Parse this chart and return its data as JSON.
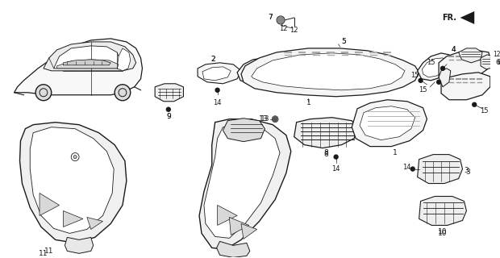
{
  "bg_color": "#ffffff",
  "line_color": "#1a1a1a",
  "fig_width": 6.2,
  "fig_height": 3.2,
  "dpi": 100,
  "xlim": [
    0,
    620
  ],
  "ylim": [
    0,
    320
  ]
}
